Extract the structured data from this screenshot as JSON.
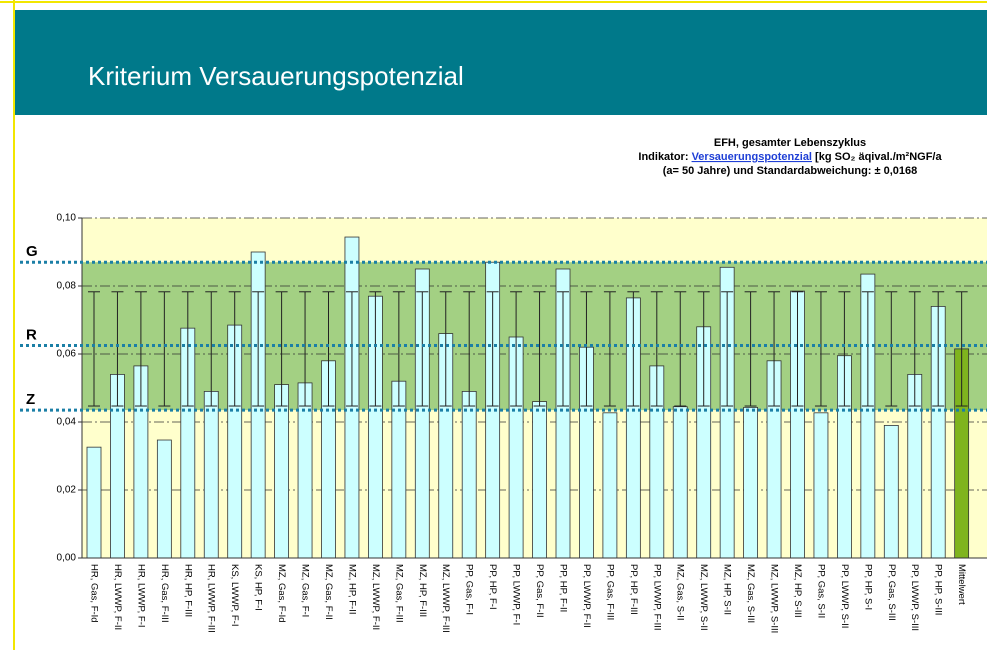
{
  "chart_data": {
    "type": "bar",
    "title": "Kriterium Versauerungspotenzial",
    "subtitle": {
      "line1": "EFH, gesamter Lebenszyklus",
      "line2_prefix": "Indikator: ",
      "line2_link": "Versauerungspotenzial",
      "line2_suffix": " [kg SO₂ äqival./m²NGF/a",
      "line3": "(a= 50 Jahre) und Standardabweichung: ± 0,0168"
    },
    "categories": [
      "HR, Gas, F-Id",
      "HR, LWWP, F-II",
      "HR, LWWP, F-I",
      "HR, Gas, F-III",
      "HR, HP, F-III",
      "HR, LWWP, F-III",
      "KS, LWWP, F-I",
      "KS, HP, F-I",
      "MZ, Gas, F-Id",
      "MZ, Gas, F-I",
      "MZ, Gas, F-II",
      "MZ, HP, F-II",
      "MZ, LWWP, F-II",
      "MZ, Gas, F-III",
      "MZ, HP, F-III",
      "MZ, LWWP, F-III",
      "PP, Gas, F-I",
      "PP, HP, F-I",
      "PP, LWWP, F-I",
      "PP, Gas, F-II",
      "PP, HP, F-II",
      "PP, LWWP, F-II",
      "PP, Gas, F-III",
      "PP, HP, F-III",
      "PP, LWWP, F-III",
      "MZ, Gas, S-II",
      "MZ, LWWP, S-II",
      "MZ, HP, S-II",
      "MZ, Gas, S-III",
      "MZ, LWWP, S-III",
      "MZ, HP, S-III",
      "PP, Gas, S-II",
      "PP, LWWP, S-II",
      "PP, HP, S-I",
      "PP, Gas, S-III",
      "PP, LWWP, S-III",
      "PP, HP, S-III",
      "Mittelwert"
    ],
    "values": [
      0.0326,
      0.054,
      0.0565,
      0.0347,
      0.0676,
      0.049,
      0.0685,
      0.09,
      0.051,
      0.0515,
      0.058,
      0.0944,
      0.077,
      0.052,
      0.085,
      0.066,
      0.049,
      0.087,
      0.065,
      0.046,
      0.085,
      0.062,
      0.0427,
      0.0765,
      0.0565,
      0.0445,
      0.068,
      0.0855,
      0.0443,
      0.058,
      0.0785,
      0.0427,
      0.0595,
      0.0835,
      0.039,
      0.054,
      0.074,
      0.0615
    ],
    "color": "#ccffff",
    "mean_color": "#7fb41e",
    "error": 0.0168,
    "ylim": [
      0,
      0.1
    ],
    "yticks": [
      {
        "value": 0,
        "label": "0,00"
      },
      {
        "value": 0.02,
        "label": "0,02"
      },
      {
        "value": 0.04,
        "label": "0,04"
      },
      {
        "value": 0.06,
        "label": "0,06"
      },
      {
        "value": 0.08,
        "label": "0,08"
      },
      {
        "value": 0.1,
        "label": "0,10"
      }
    ],
    "reference_lines": [
      {
        "label": "G",
        "value": 0.087
      },
      {
        "label": "R",
        "value": 0.0625
      },
      {
        "label": "Z",
        "value": 0.0435
      }
    ],
    "grid": true
  }
}
